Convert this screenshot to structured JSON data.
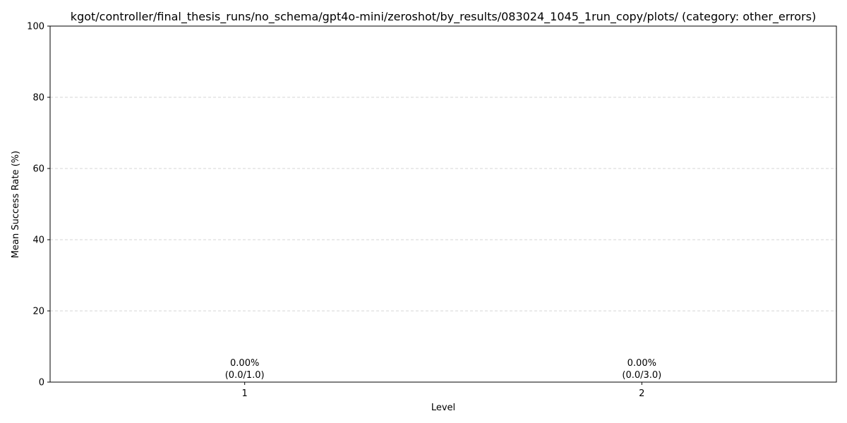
{
  "chart_data": {
    "type": "bar",
    "title": "kgot/controller/final_thesis_runs/no_schema/gpt4o-mini/zeroshot/by_results/083024_1045_1run_copy/plots/ (category: other_errors)",
    "xlabel": "Level",
    "ylabel": "Mean Success Rate (%)",
    "categories": [
      "1",
      "2"
    ],
    "values": [
      0.0,
      0.0
    ],
    "data_labels": [
      [
        "0.00%",
        "(0.0/1.0)"
      ],
      [
        "0.00%",
        "(0.0/3.0)"
      ]
    ],
    "ylim": [
      0,
      100
    ],
    "yticks": [
      0,
      20,
      40,
      60,
      80,
      100
    ],
    "grid": "y-dashed",
    "bar_color": "#1f77b4"
  }
}
